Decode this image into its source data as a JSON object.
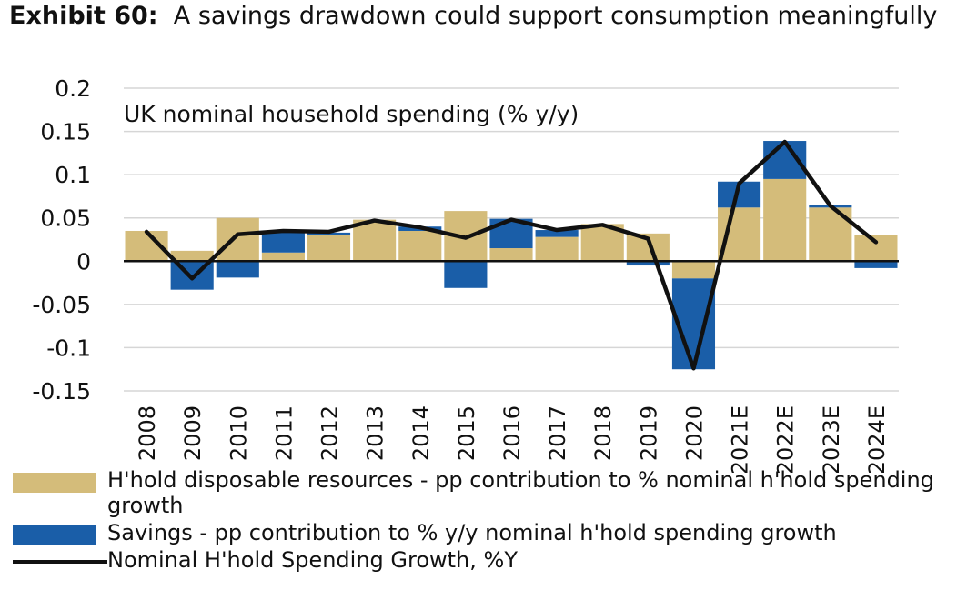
{
  "exhibit": {
    "label": "Exhibit 60:",
    "title": "A savings drawdown could support consumption meaningfully"
  },
  "chart_data": {
    "type": "bar",
    "title": "UK nominal household spending (% y/y)",
    "categories": [
      "2008",
      "2009",
      "2010",
      "2011",
      "2012",
      "2013",
      "2014",
      "2015",
      "2016",
      "2017",
      "2018",
      "2019",
      "2020",
      "2021E",
      "2022E",
      "2023E",
      "2024E"
    ],
    "ylim": [
      -0.15,
      0.2
    ],
    "yticks": [
      "0.2",
      "0.15",
      "0.1",
      "0.05",
      "0",
      "-0.05",
      "-0.1",
      "-0.15"
    ],
    "grid": true,
    "legend_position": "bottom",
    "series": [
      {
        "name": "H'hold disposable resources - pp contribution to % nominal h'hold spending growth",
        "type": "bar",
        "color": "#d4bc7a",
        "values": [
          0.035,
          0.012,
          0.05,
          0.01,
          0.03,
          0.048,
          0.035,
          0.058,
          0.015,
          0.028,
          0.043,
          0.032,
          -0.02,
          0.062,
          0.095,
          0.062,
          0.03
        ]
      },
      {
        "name": "Savings - pp contribution to % y/y nominal h'hold spending growth",
        "type": "bar",
        "color": "#1a5ea8",
        "values": [
          0.0,
          -0.033,
          -0.019,
          0.025,
          0.003,
          0.0,
          0.005,
          -0.031,
          0.034,
          0.008,
          0.0,
          -0.005,
          -0.105,
          0.03,
          0.044,
          0.003,
          -0.008
        ]
      },
      {
        "name": "Nominal H'hold Spending Growth, %Y",
        "type": "line",
        "color": "#111111",
        "values": [
          0.034,
          -0.02,
          0.031,
          0.035,
          0.034,
          0.047,
          0.039,
          0.027,
          0.048,
          0.036,
          0.042,
          0.026,
          -0.124,
          0.09,
          0.138,
          0.064,
          0.022
        ]
      }
    ]
  }
}
